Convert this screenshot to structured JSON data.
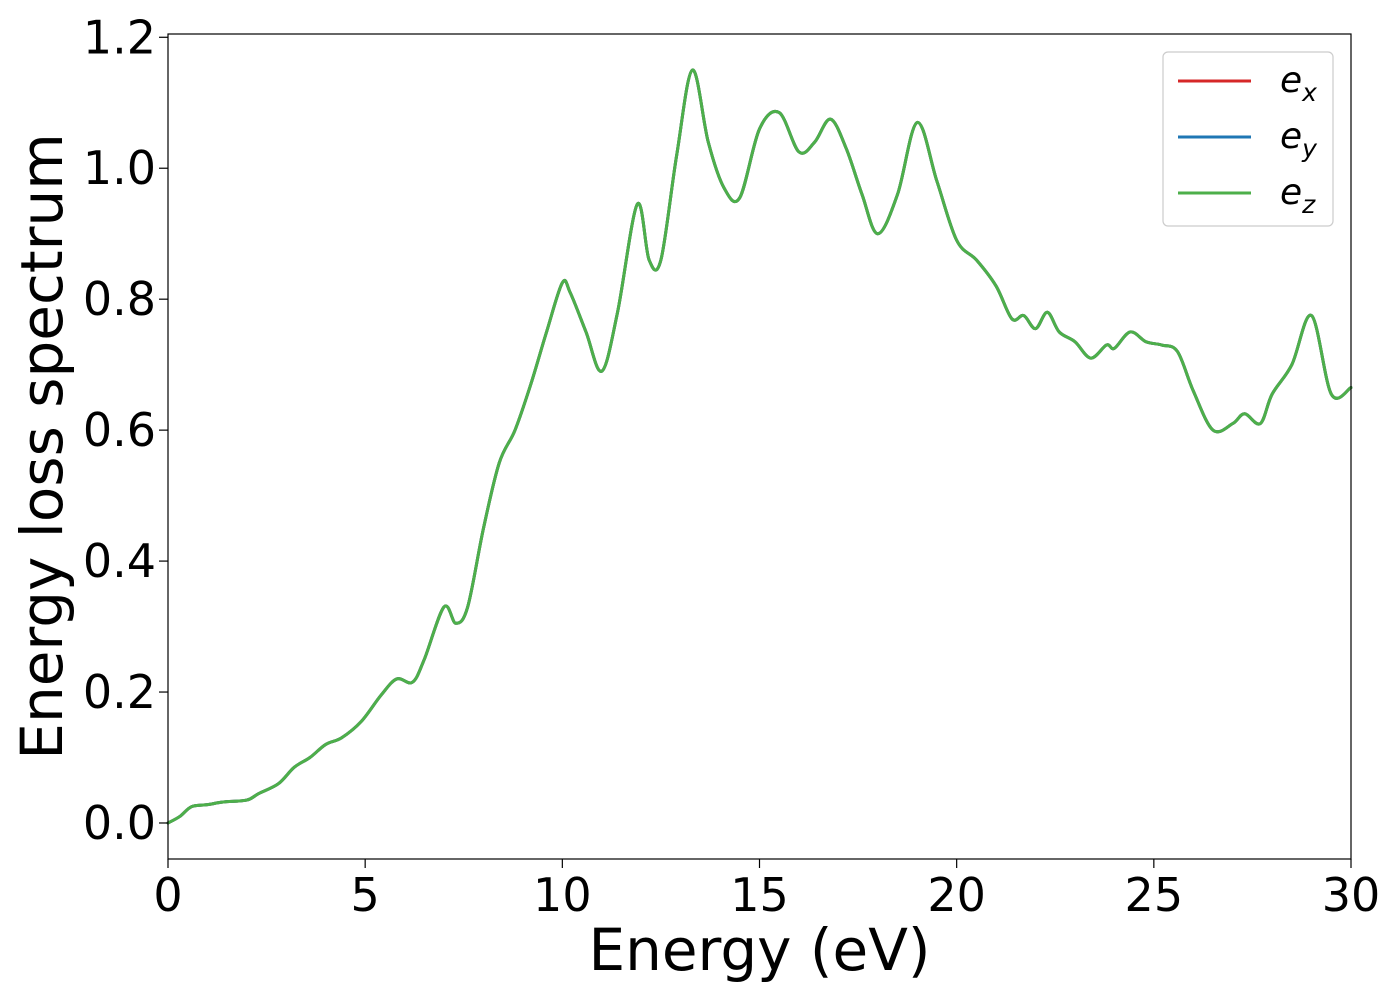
{
  "chart_data": {
    "type": "line",
    "title": "",
    "xlabel": "Energy (eV)",
    "ylabel": "Energy loss spectrum",
    "xlim": [
      0,
      30
    ],
    "ylim": [
      -0.055,
      1.205
    ],
    "xticks": [
      0,
      5,
      10,
      15,
      20,
      25,
      30
    ],
    "xtick_labels": [
      "0",
      "5",
      "10",
      "15",
      "20",
      "25",
      "30"
    ],
    "yticks": [
      0.0,
      0.2,
      0.4,
      0.6,
      0.8,
      1.0,
      1.2
    ],
    "ytick_labels": [
      "0.0",
      "0.2",
      "0.4",
      "0.6",
      "0.8",
      "1.0",
      "1.2"
    ],
    "grid": false,
    "legend_position": "top-right",
    "x": [
      0,
      0.3,
      0.6,
      1.0,
      1.4,
      2.0,
      2.3,
      2.8,
      3.2,
      3.6,
      4.0,
      4.4,
      4.9,
      5.4,
      5.8,
      6.2,
      6.5,
      7.0,
      7.3,
      7.6,
      8.0,
      8.4,
      8.8,
      9.2,
      9.6,
      10.0,
      10.2,
      10.6,
      11.0,
      11.4,
      11.9,
      12.2,
      12.5,
      12.9,
      13.3,
      13.7,
      14.1,
      14.5,
      15.0,
      15.5,
      16.0,
      16.4,
      16.8,
      17.2,
      17.6,
      18.0,
      18.5,
      19.0,
      19.5,
      20.0,
      20.5,
      21.0,
      21.4,
      21.7,
      22.0,
      22.3,
      22.6,
      23.0,
      23.4,
      23.8,
      24.0,
      24.4,
      24.8,
      25.2,
      25.6,
      26.0,
      26.5,
      27.0,
      27.3,
      27.7,
      28.0,
      28.5,
      29.0,
      29.5,
      30.0
    ],
    "series": [
      {
        "name_base": "e",
        "name_sub": "x",
        "color": "#d62728",
        "values": [
          0.0,
          0.01,
          0.025,
          0.028,
          0.032,
          0.035,
          0.045,
          0.06,
          0.085,
          0.1,
          0.12,
          0.13,
          0.155,
          0.195,
          0.22,
          0.215,
          0.25,
          0.33,
          0.305,
          0.33,
          0.45,
          0.55,
          0.6,
          0.67,
          0.75,
          0.825,
          0.81,
          0.75,
          0.69,
          0.78,
          0.945,
          0.86,
          0.86,
          1.02,
          1.15,
          1.04,
          0.97,
          0.955,
          1.06,
          1.085,
          1.025,
          1.04,
          1.075,
          1.03,
          0.96,
          0.9,
          0.96,
          1.07,
          0.98,
          0.89,
          0.86,
          0.82,
          0.77,
          0.775,
          0.755,
          0.78,
          0.75,
          0.735,
          0.71,
          0.73,
          0.725,
          0.75,
          0.735,
          0.73,
          0.72,
          0.66,
          0.6,
          0.61,
          0.625,
          0.61,
          0.655,
          0.7,
          0.775,
          0.655,
          0.665
        ]
      },
      {
        "name_base": "e",
        "name_sub": "y",
        "color": "#1f77b4",
        "values": [
          0.0,
          0.01,
          0.025,
          0.028,
          0.032,
          0.035,
          0.045,
          0.06,
          0.085,
          0.1,
          0.12,
          0.13,
          0.155,
          0.195,
          0.22,
          0.215,
          0.25,
          0.33,
          0.305,
          0.33,
          0.45,
          0.55,
          0.6,
          0.67,
          0.75,
          0.825,
          0.81,
          0.75,
          0.69,
          0.78,
          0.945,
          0.86,
          0.86,
          1.02,
          1.15,
          1.04,
          0.97,
          0.955,
          1.06,
          1.085,
          1.025,
          1.04,
          1.075,
          1.03,
          0.96,
          0.9,
          0.96,
          1.07,
          0.98,
          0.89,
          0.86,
          0.82,
          0.77,
          0.775,
          0.755,
          0.78,
          0.75,
          0.735,
          0.71,
          0.73,
          0.725,
          0.75,
          0.735,
          0.73,
          0.72,
          0.66,
          0.6,
          0.61,
          0.625,
          0.61,
          0.655,
          0.7,
          0.775,
          0.655,
          0.665
        ]
      },
      {
        "name_base": "e",
        "name_sub": "z",
        "color": "#4daf4a",
        "values": [
          0.0,
          0.01,
          0.025,
          0.028,
          0.032,
          0.035,
          0.045,
          0.06,
          0.085,
          0.1,
          0.12,
          0.13,
          0.155,
          0.195,
          0.22,
          0.215,
          0.25,
          0.33,
          0.305,
          0.33,
          0.45,
          0.55,
          0.6,
          0.67,
          0.75,
          0.825,
          0.81,
          0.75,
          0.69,
          0.78,
          0.945,
          0.86,
          0.86,
          1.02,
          1.15,
          1.04,
          0.97,
          0.955,
          1.06,
          1.085,
          1.025,
          1.04,
          1.075,
          1.03,
          0.96,
          0.9,
          0.96,
          1.07,
          0.98,
          0.89,
          0.86,
          0.82,
          0.77,
          0.775,
          0.755,
          0.78,
          0.75,
          0.735,
          0.71,
          0.73,
          0.725,
          0.75,
          0.735,
          0.73,
          0.72,
          0.66,
          0.6,
          0.61,
          0.625,
          0.61,
          0.655,
          0.7,
          0.775,
          0.655,
          0.665
        ]
      }
    ]
  }
}
